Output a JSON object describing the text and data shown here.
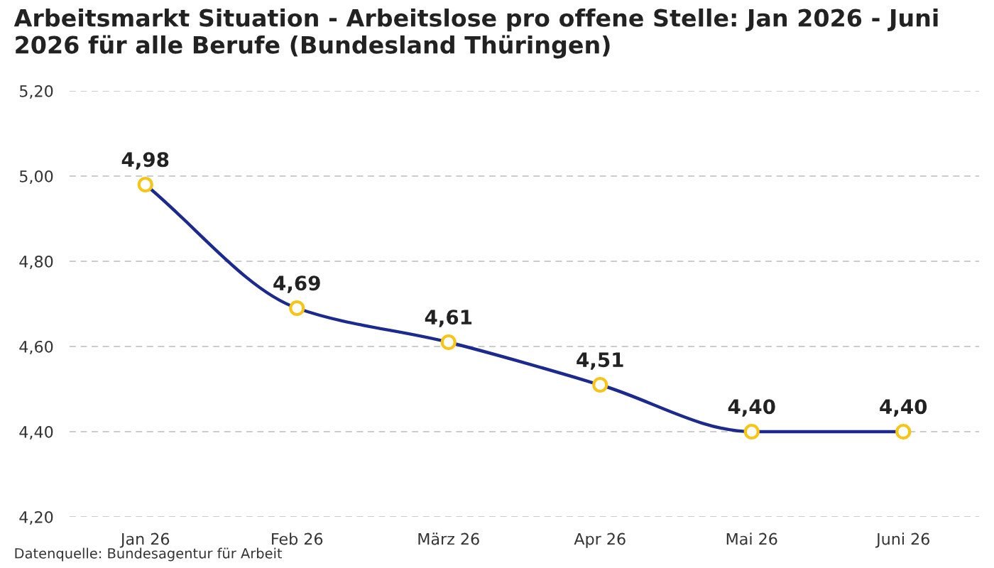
{
  "chart_data": {
    "type": "line",
    "title": "Arbeitsmarkt Situation - Arbeitslose pro offene Stelle: Jan 2026 - Juni 2026 für alle Berufe (Bundesland Thüringen)",
    "categories": [
      "Jan 26",
      "Feb 26",
      "März 26",
      "Apr 26",
      "Mai 26",
      "Juni 26"
    ],
    "series": [
      {
        "color": "#1b2a8c",
        "colors": [
          "#f5c518",
          "#f5c518",
          "#f5c518",
          "#f5c518",
          "#f5c518",
          "#f5c518"
        ],
        "values": [
          4.98,
          4.69,
          4.61,
          4.51,
          4.4,
          4.4
        ],
        "value_labels": [
          "4,98",
          "4,69",
          "4,61",
          "4,51",
          "4,40",
          "4,40"
        ]
      }
    ],
    "marker": "circle",
    "ylim": [
      4.2,
      5.2
    ],
    "yticks": [
      {
        "value": 4.2,
        "label": "4,20"
      },
      {
        "value": 4.4,
        "label": "4,40"
      },
      {
        "value": 4.6,
        "label": "4,60"
      },
      {
        "value": 4.8,
        "label": "4,80"
      },
      {
        "value": 5.0,
        "label": "5,00"
      },
      {
        "value": 5.2,
        "label": "5,20"
      }
    ],
    "grid": "y",
    "annotations": [
      "Datenquelle: Bundesagentur für Arbeit"
    ]
  }
}
